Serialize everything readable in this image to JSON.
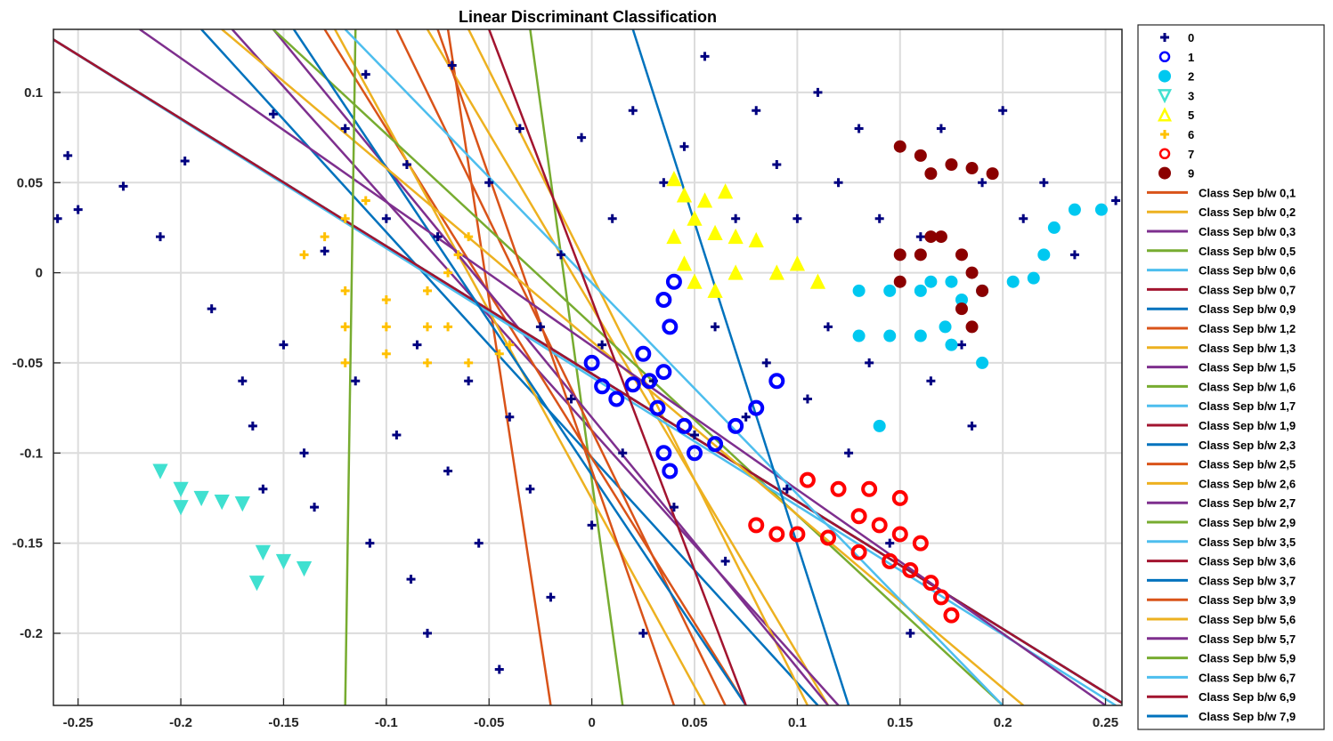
{
  "chart_data": {
    "type": "scatter",
    "title": "Linear Discriminant Classification",
    "xlabel": "",
    "ylabel": "",
    "xlim": [
      -0.262,
      0.258
    ],
    "ylim": [
      -0.24,
      0.135
    ],
    "xticks": [
      -0.25,
      -0.2,
      -0.15,
      -0.1,
      -0.05,
      0,
      0.05,
      0.1,
      0.15,
      0.2,
      0.25
    ],
    "xtick_labels": [
      "-0.25",
      "-0.2",
      "-0.15",
      "-0.1",
      "-0.05",
      "0",
      "0.05",
      "0.1",
      "0.15",
      "0.2",
      "0.25"
    ],
    "yticks": [
      0.1,
      0.05,
      0,
      -0.05,
      -0.1,
      -0.15,
      -0.2
    ],
    "ytick_labels": [
      "0.1",
      "0.05",
      "0",
      "-0.05",
      "-0.1",
      "-0.15",
      "-0.2"
    ],
    "grid": true,
    "legend_position": "outside-right",
    "series": [
      {
        "name": "0",
        "marker": "plus",
        "color": "#000080",
        "points": [
          [
            -0.26,
            0.03
          ],
          [
            -0.255,
            0.065
          ],
          [
            -0.25,
            0.035
          ],
          [
            -0.228,
            0.048
          ],
          [
            -0.21,
            0.02
          ],
          [
            -0.198,
            0.062
          ],
          [
            -0.185,
            -0.02
          ],
          [
            -0.17,
            -0.06
          ],
          [
            -0.165,
            -0.085
          ],
          [
            -0.16,
            -0.12
          ],
          [
            -0.155,
            0.088
          ],
          [
            -0.15,
            -0.04
          ],
          [
            -0.14,
            -0.1
          ],
          [
            -0.135,
            -0.13
          ],
          [
            -0.13,
            0.012
          ],
          [
            -0.12,
            0.08
          ],
          [
            -0.115,
            -0.06
          ],
          [
            -0.11,
            0.11
          ],
          [
            -0.108,
            -0.15
          ],
          [
            -0.1,
            0.03
          ],
          [
            -0.095,
            -0.09
          ],
          [
            -0.09,
            0.06
          ],
          [
            -0.088,
            -0.17
          ],
          [
            -0.085,
            -0.04
          ],
          [
            -0.08,
            -0.2
          ],
          [
            -0.075,
            0.02
          ],
          [
            -0.07,
            -0.11
          ],
          [
            -0.068,
            0.115
          ],
          [
            -0.06,
            -0.06
          ],
          [
            -0.055,
            -0.15
          ],
          [
            -0.05,
            0.05
          ],
          [
            -0.045,
            -0.22
          ],
          [
            -0.04,
            -0.08
          ],
          [
            -0.035,
            0.08
          ],
          [
            -0.03,
            -0.12
          ],
          [
            -0.025,
            -0.03
          ],
          [
            -0.02,
            -0.18
          ],
          [
            -0.015,
            0.01
          ],
          [
            -0.01,
            -0.07
          ],
          [
            -0.005,
            0.075
          ],
          [
            0.0,
            -0.14
          ],
          [
            0.005,
            -0.04
          ],
          [
            0.01,
            0.03
          ],
          [
            0.015,
            -0.1
          ],
          [
            0.02,
            0.09
          ],
          [
            0.025,
            -0.2
          ],
          [
            0.03,
            -0.06
          ],
          [
            0.035,
            0.05
          ],
          [
            0.04,
            -0.13
          ],
          [
            0.045,
            0.07
          ],
          [
            0.05,
            -0.09
          ],
          [
            0.055,
            0.12
          ],
          [
            0.06,
            -0.03
          ],
          [
            0.065,
            -0.16
          ],
          [
            0.07,
            0.03
          ],
          [
            0.075,
            -0.08
          ],
          [
            0.08,
            0.09
          ],
          [
            0.085,
            -0.05
          ],
          [
            0.09,
            0.06
          ],
          [
            0.095,
            -0.12
          ],
          [
            0.1,
            0.03
          ],
          [
            0.105,
            -0.07
          ],
          [
            0.11,
            0.1
          ],
          [
            0.115,
            -0.03
          ],
          [
            0.12,
            0.05
          ],
          [
            0.125,
            -0.1
          ],
          [
            0.13,
            0.08
          ],
          [
            0.135,
            -0.05
          ],
          [
            0.14,
            0.03
          ],
          [
            0.145,
            -0.15
          ],
          [
            0.15,
            0.07
          ],
          [
            0.155,
            -0.2
          ],
          [
            0.16,
            0.02
          ],
          [
            0.165,
            -0.06
          ],
          [
            0.17,
            0.08
          ],
          [
            0.18,
            -0.04
          ],
          [
            0.185,
            -0.085
          ],
          [
            0.19,
            0.05
          ],
          [
            0.2,
            0.09
          ],
          [
            0.21,
            0.03
          ],
          [
            0.22,
            0.05
          ],
          [
            0.235,
            0.01
          ],
          [
            0.255,
            0.04
          ]
        ]
      },
      {
        "name": "1",
        "marker": "circle",
        "color": "#0000ff",
        "points": [
          [
            0.0,
            -0.05
          ],
          [
            0.005,
            -0.063
          ],
          [
            0.012,
            -0.07
          ],
          [
            0.02,
            -0.062
          ],
          [
            0.025,
            -0.045
          ],
          [
            0.028,
            -0.06
          ],
          [
            0.032,
            -0.075
          ],
          [
            0.035,
            -0.055
          ],
          [
            0.035,
            -0.015
          ],
          [
            0.038,
            -0.03
          ],
          [
            0.04,
            -0.005
          ],
          [
            0.035,
            -0.1
          ],
          [
            0.038,
            -0.11
          ],
          [
            0.045,
            -0.085
          ],
          [
            0.05,
            -0.1
          ],
          [
            0.06,
            -0.095
          ],
          [
            0.07,
            -0.085
          ],
          [
            0.08,
            -0.075
          ],
          [
            0.09,
            -0.06
          ]
        ]
      },
      {
        "name": "2",
        "marker": "dot",
        "color": "#00c8f0",
        "points": [
          [
            0.13,
            -0.01
          ],
          [
            0.145,
            -0.01
          ],
          [
            0.16,
            -0.01
          ],
          [
            0.175,
            -0.005
          ],
          [
            0.19,
            -0.01
          ],
          [
            0.205,
            -0.005
          ],
          [
            0.215,
            -0.003
          ],
          [
            0.22,
            0.01
          ],
          [
            0.225,
            0.025
          ],
          [
            0.235,
            0.035
          ],
          [
            0.248,
            0.035
          ],
          [
            0.13,
            -0.035
          ],
          [
            0.145,
            -0.035
          ],
          [
            0.16,
            -0.035
          ],
          [
            0.175,
            -0.04
          ],
          [
            0.19,
            -0.05
          ],
          [
            0.172,
            -0.03
          ],
          [
            0.18,
            -0.015
          ],
          [
            0.165,
            -0.005
          ],
          [
            0.14,
            -0.085
          ]
        ]
      },
      {
        "name": "3",
        "marker": "triangle-down",
        "color": "#40e0d0",
        "points": [
          [
            -0.21,
            -0.11
          ],
          [
            -0.2,
            -0.12
          ],
          [
            -0.2,
            -0.13
          ],
          [
            -0.19,
            -0.125
          ],
          [
            -0.18,
            -0.127
          ],
          [
            -0.17,
            -0.128
          ],
          [
            -0.16,
            -0.155
          ],
          [
            -0.15,
            -0.16
          ],
          [
            -0.14,
            -0.164
          ],
          [
            -0.163,
            -0.172
          ]
        ]
      },
      {
        "name": "5",
        "marker": "triangle-up",
        "color": "#ffff00",
        "points": [
          [
            0.04,
            0.052
          ],
          [
            0.045,
            0.043
          ],
          [
            0.055,
            0.04
          ],
          [
            0.065,
            0.045
          ],
          [
            0.05,
            0.03
          ],
          [
            0.06,
            0.022
          ],
          [
            0.07,
            0.02
          ],
          [
            0.08,
            0.018
          ],
          [
            0.04,
            0.02
          ],
          [
            0.045,
            0.005
          ],
          [
            0.05,
            -0.005
          ],
          [
            0.06,
            -0.01
          ],
          [
            0.07,
            0.0
          ],
          [
            0.09,
            0.0
          ],
          [
            0.1,
            0.005
          ],
          [
            0.11,
            -0.005
          ]
        ]
      },
      {
        "name": "6",
        "marker": "plus",
        "color": "#ffc000",
        "points": [
          [
            -0.14,
            0.01
          ],
          [
            -0.13,
            0.02
          ],
          [
            -0.12,
            0.03
          ],
          [
            -0.11,
            0.04
          ],
          [
            -0.12,
            -0.01
          ],
          [
            -0.1,
            -0.015
          ],
          [
            -0.08,
            -0.01
          ],
          [
            -0.07,
            0.0
          ],
          [
            -0.065,
            0.01
          ],
          [
            -0.06,
            0.02
          ],
          [
            -0.12,
            -0.03
          ],
          [
            -0.1,
            -0.03
          ],
          [
            -0.08,
            -0.03
          ],
          [
            -0.07,
            -0.03
          ],
          [
            -0.12,
            -0.05
          ],
          [
            -0.1,
            -0.045
          ],
          [
            -0.08,
            -0.05
          ],
          [
            -0.06,
            -0.05
          ],
          [
            -0.045,
            -0.045
          ],
          [
            -0.04,
            -0.04
          ]
        ]
      },
      {
        "name": "7",
        "marker": "circle",
        "color": "#ff0000",
        "points": [
          [
            0.08,
            -0.14
          ],
          [
            0.09,
            -0.145
          ],
          [
            0.1,
            -0.145
          ],
          [
            0.115,
            -0.147
          ],
          [
            0.105,
            -0.115
          ],
          [
            0.12,
            -0.12
          ],
          [
            0.135,
            -0.12
          ],
          [
            0.15,
            -0.125
          ],
          [
            0.13,
            -0.135
          ],
          [
            0.14,
            -0.14
          ],
          [
            0.15,
            -0.145
          ],
          [
            0.16,
            -0.15
          ],
          [
            0.13,
            -0.155
          ],
          [
            0.145,
            -0.16
          ],
          [
            0.155,
            -0.165
          ],
          [
            0.165,
            -0.172
          ],
          [
            0.17,
            -0.18
          ],
          [
            0.175,
            -0.19
          ]
        ]
      },
      {
        "name": "9",
        "marker": "dot",
        "color": "#8b0000",
        "points": [
          [
            0.15,
            0.07
          ],
          [
            0.16,
            0.065
          ],
          [
            0.165,
            0.055
          ],
          [
            0.175,
            0.06
          ],
          [
            0.185,
            0.058
          ],
          [
            0.195,
            0.055
          ],
          [
            0.15,
            0.01
          ],
          [
            0.15,
            -0.005
          ],
          [
            0.16,
            0.01
          ],
          [
            0.165,
            0.02
          ],
          [
            0.17,
            0.02
          ],
          [
            0.18,
            0.01
          ],
          [
            0.185,
            0.0
          ],
          [
            0.19,
            -0.01
          ],
          [
            0.18,
            -0.02
          ],
          [
            0.185,
            -0.03
          ]
        ]
      }
    ],
    "boundaries": [
      {
        "name": "Class Sep b/w 0,1",
        "color": "#d95319",
        "x1": -0.07,
        "x2": -0.02
      },
      {
        "name": "Class Sep b/w 0,2",
        "color": "#edb120",
        "x1": -0.08,
        "x2": 0.115
      },
      {
        "name": "Class Sep b/w 0,3",
        "color": "#7e2f8e",
        "x1": -0.175,
        "x2": 0.12
      },
      {
        "name": "Class Sep b/w 0,5",
        "color": "#77ac30",
        "x1": -0.03,
        "x2": 0.015
      },
      {
        "name": "Class Sep b/w 0,6",
        "color": "#4dbeee",
        "x1": -0.27,
        "x2": 0.26
      },
      {
        "name": "Class Sep b/w 0,7",
        "color": "#a2142f",
        "x1": -0.27,
        "x2": 0.26
      },
      {
        "name": "Class Sep b/w 0,9",
        "color": "#0072bd",
        "x1": -0.19,
        "x2": 0.11
      },
      {
        "name": "Class Sep b/w 1,2",
        "color": "#d95319",
        "x1": -0.095,
        "x2": 0.065
      },
      {
        "name": "Class Sep b/w 1,3",
        "color": "#edb120",
        "x1": -0.06,
        "x2": 0.105
      },
      {
        "name": "Class Sep b/w 1,5",
        "color": "#7e2f8e",
        "x1": -0.27,
        "x2": 0.26
      },
      {
        "name": "Class Sep b/w 1,6",
        "color": "#77ac30",
        "x1": -0.27,
        "x2": 0.26
      },
      {
        "name": "Class Sep b/w 1,7",
        "color": "#4dbeee",
        "x1": -0.27,
        "x2": 0.26
      },
      {
        "name": "Class Sep b/w 1,9",
        "color": "#a2142f",
        "x1": -0.27,
        "x2": 0.26
      },
      {
        "name": "Class Sep b/w 2,3",
        "color": "#0072bd",
        "x1": -0.27,
        "x2": 0.26
      },
      {
        "name": "Class Sep b/w 2,5",
        "color": "#d95319",
        "x1": -0.13,
        "x2": 0.075
      },
      {
        "name": "Class Sep b/w 2,6",
        "color": "#edb120",
        "x1": -0.125,
        "x2": 0.055
      },
      {
        "name": "Class Sep b/w 2,7",
        "color": "#7e2f8e",
        "x1": -0.155,
        "x2": 0.115
      },
      {
        "name": "Class Sep b/w 2,9",
        "color": "#77ac30",
        "x1": -0.155,
        "x2": 0.2
      },
      {
        "name": "Class Sep b/w 3,5",
        "color": "#4dbeee",
        "x1": -0.27,
        "x2": 0.255
      },
      {
        "name": "Class Sep b/w 3,6",
        "color": "#a2142f",
        "x1": -0.27,
        "x2": 0.26
      },
      {
        "name": "Class Sep b/w 3,7",
        "color": "#0072bd",
        "x1": -0.145,
        "x2": 0.075
      },
      {
        "name": "Class Sep b/w 3,9",
        "color": "#d95319",
        "x1": -0.075,
        "x2": 0.04
      },
      {
        "name": "Class Sep b/w 5,6",
        "color": "#edb120",
        "x1": -0.18,
        "x2": 0.21
      },
      {
        "name": "Class Sep b/w 5,7",
        "color": "#7e2f8e",
        "x1": -0.22,
        "x2": 0.25
      },
      {
        "name": "Class Sep b/w 5,9",
        "color": "#77ac30",
        "x1": -0.115,
        "x2": -0.12
      },
      {
        "name": "Class Sep b/w 6,7",
        "color": "#4dbeee",
        "x1": -0.12,
        "x2": 0.2
      },
      {
        "name": "Class Sep b/w 6,9",
        "color": "#a2142f",
        "x1": -0.05,
        "x2": 0.075
      },
      {
        "name": "Class Sep b/w 7,9",
        "color": "#0072bd",
        "x1": 0.02,
        "x2": 0.125
      }
    ]
  }
}
